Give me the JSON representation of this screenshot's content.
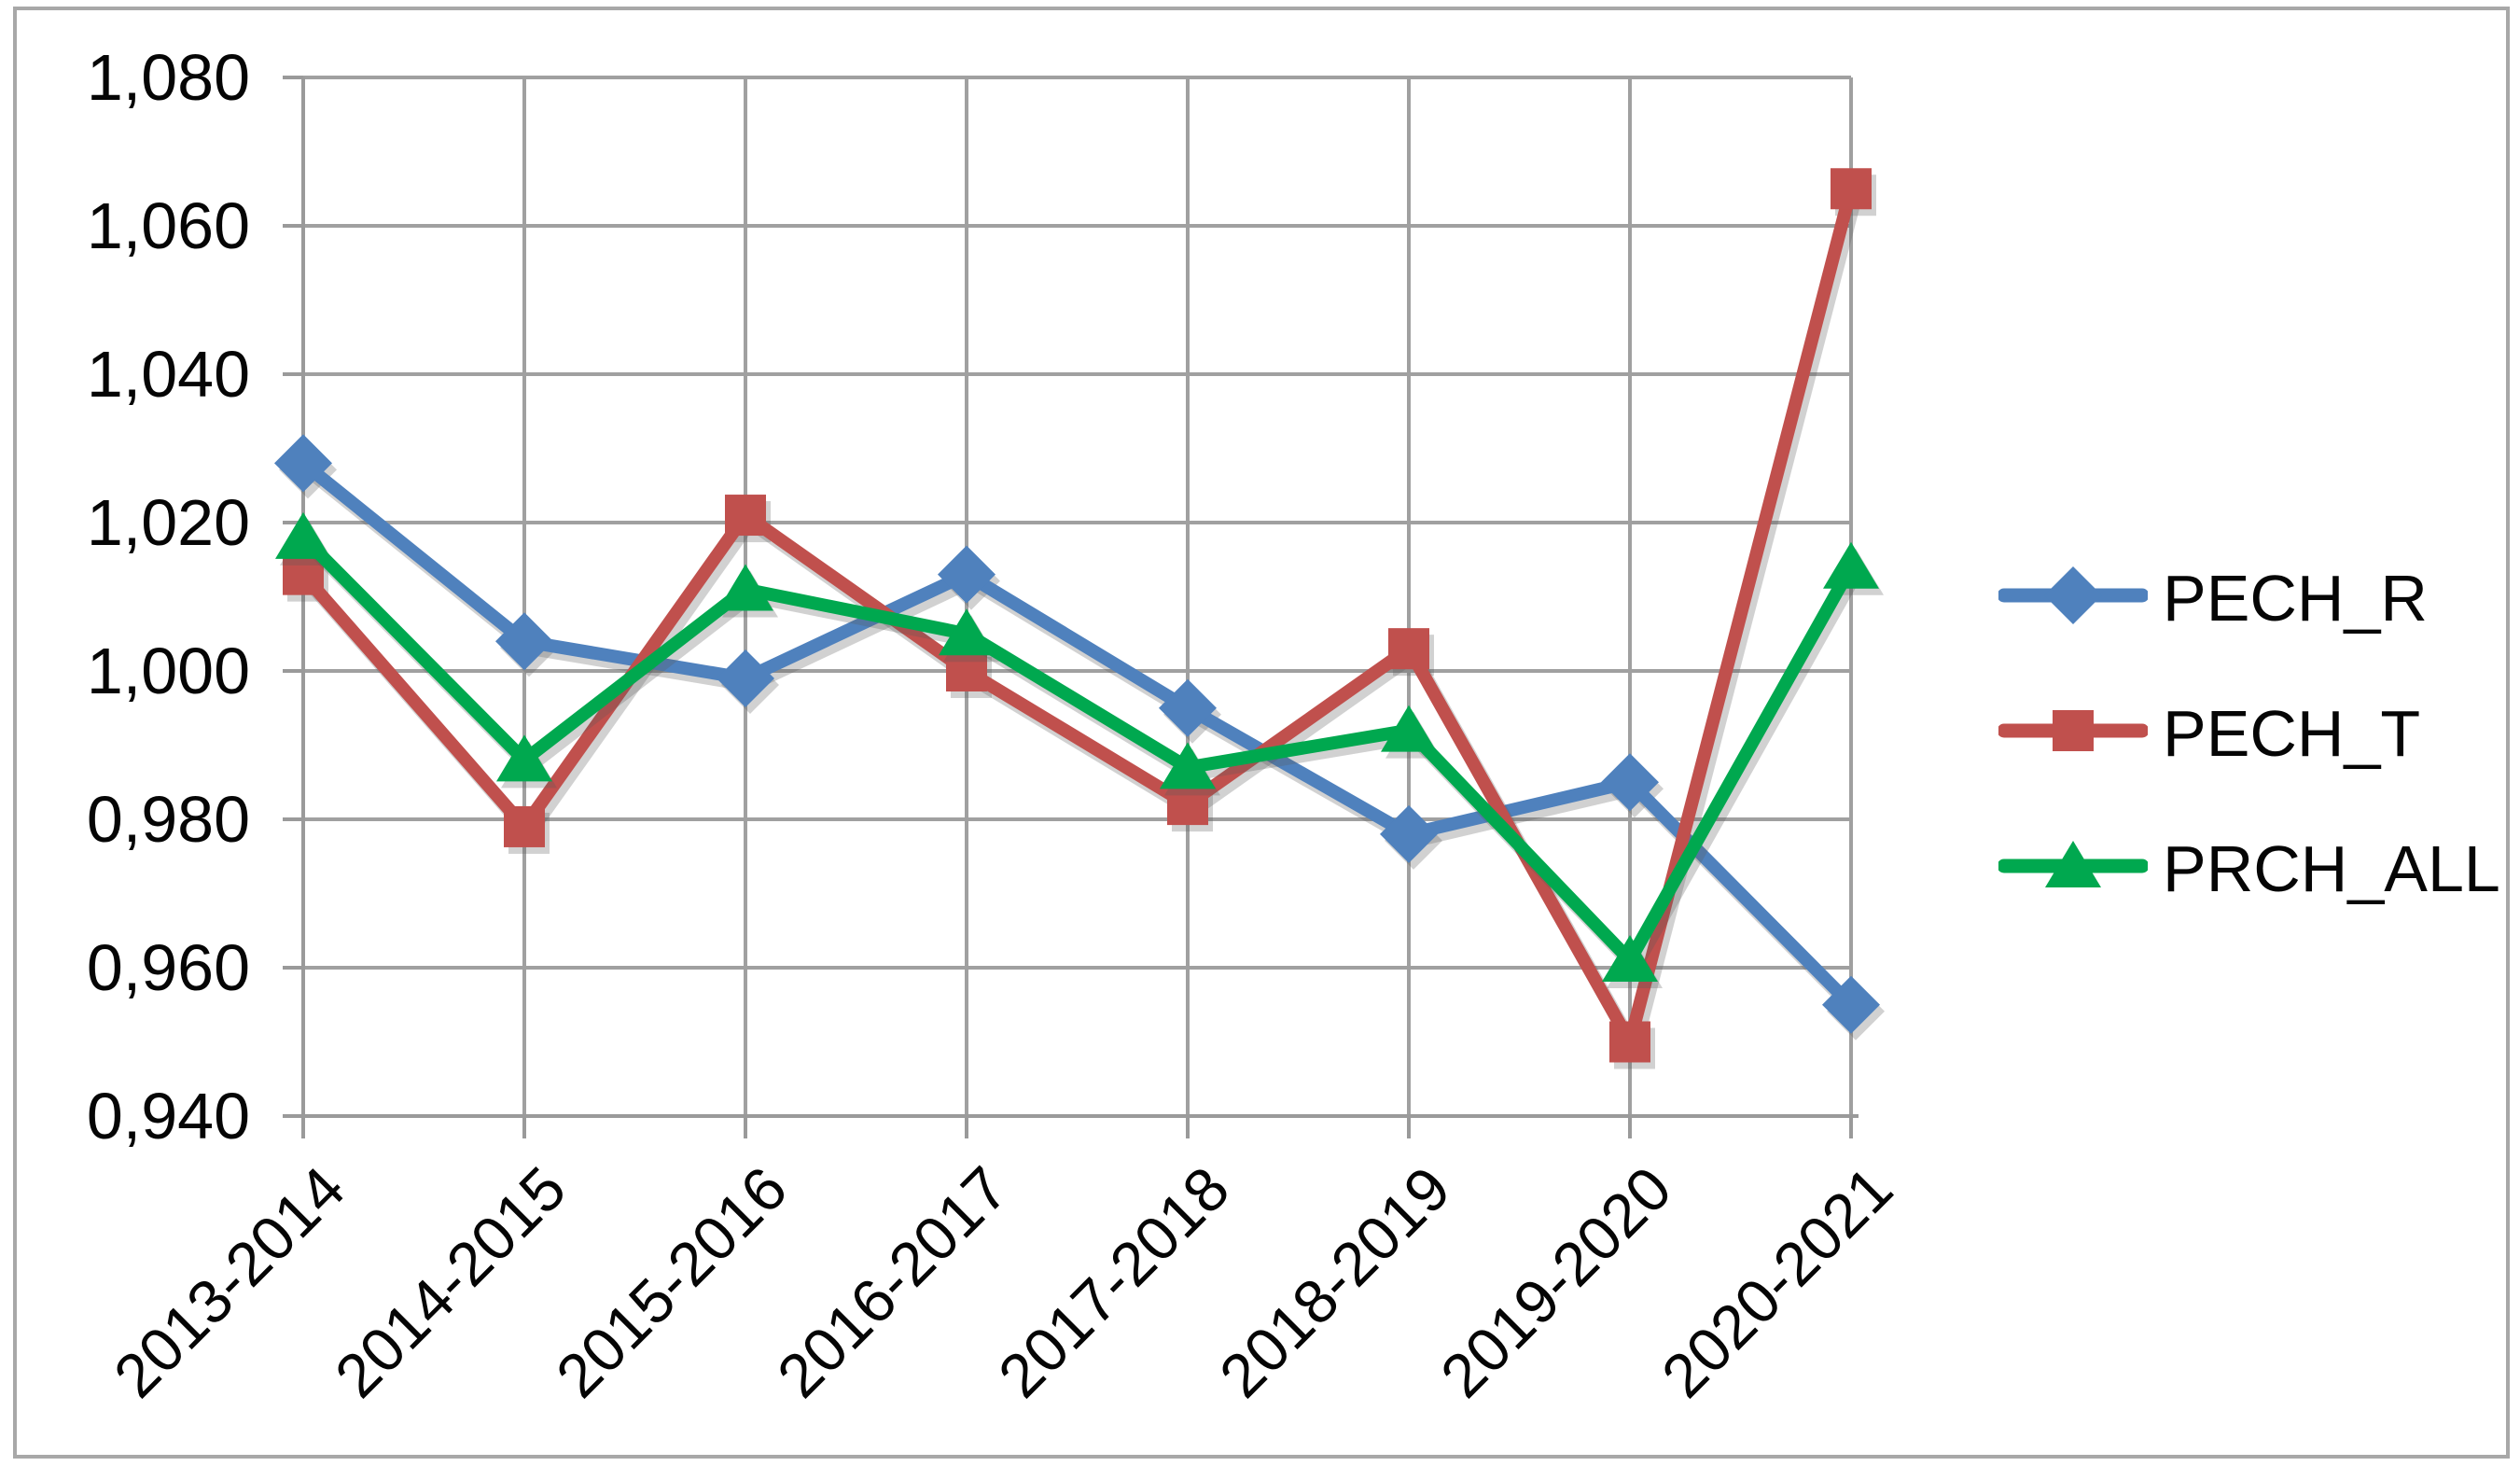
{
  "chart_data": {
    "type": "line",
    "title": "",
    "categories": [
      "2013-2014",
      "2014-2015",
      "2015-2016",
      "2016-2017",
      "2017-2018",
      "2018-2019",
      "2019-2020",
      "2020-2021"
    ],
    "series": [
      {
        "name": "PECH_R",
        "marker": "diamond",
        "color": "#4F81BD",
        "values": [
          1.028,
          1.004,
          0.999,
          1.013,
          0.995,
          0.978,
          0.985,
          0.955
        ]
      },
      {
        "name": "PECH_T",
        "marker": "square",
        "color": "#C0504D",
        "values": [
          1.013,
          0.979,
          1.021,
          1.0,
          0.982,
          1.003,
          0.95,
          1.065
        ]
      },
      {
        "name": "PRCH_ALL",
        "marker": "triangle",
        "color": "#00A84F",
        "values": [
          1.018,
          0.988,
          1.011,
          1.005,
          0.987,
          0.992,
          0.961,
          1.014
        ]
      }
    ],
    "y_axis": {
      "min": 0.94,
      "max": 1.08,
      "step": 0.02,
      "decimal_separator": ",",
      "tick_labels": [
        "0,940",
        "0,960",
        "0,980",
        "1,000",
        "1,020",
        "1,040",
        "1,060",
        "1,080"
      ]
    },
    "x_axis": {
      "label_rotation_deg": 45
    },
    "grid": true,
    "legend_position": "right"
  },
  "colors": {
    "background": "#FFFFFF",
    "gridline": "#A0A0A0",
    "axis": "#9A9A9A",
    "tick_text": "#050505",
    "chart_border": "#A8A8A8",
    "shadow": "rgba(90,90,90,0.28)"
  }
}
